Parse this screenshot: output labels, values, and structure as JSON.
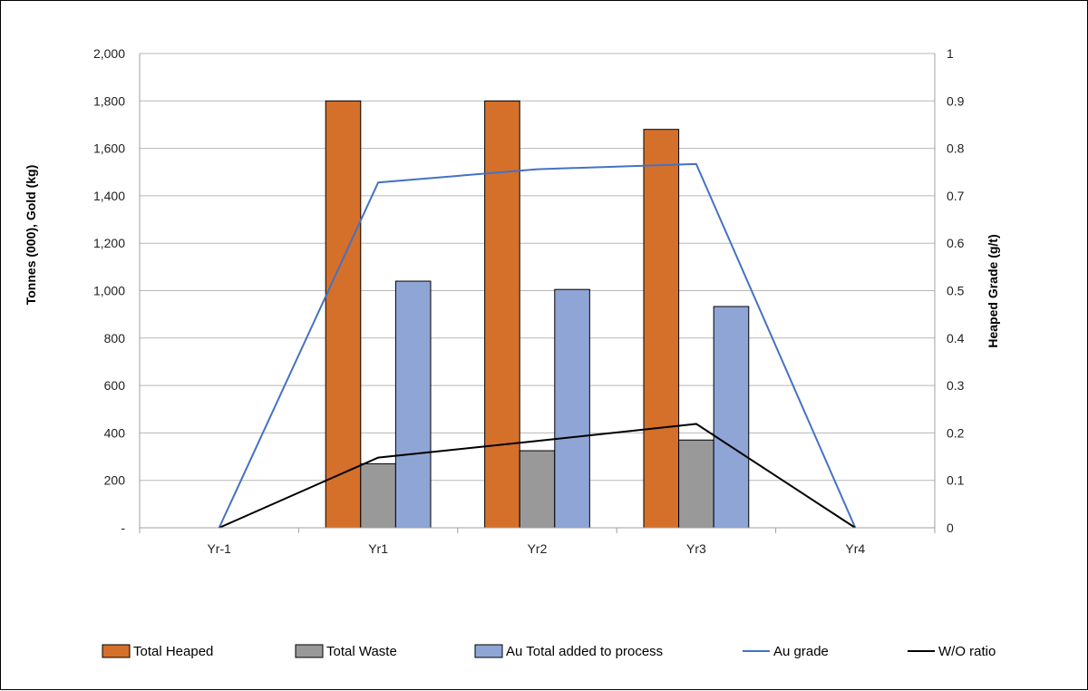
{
  "chart_data": {
    "type": "bar",
    "categories": [
      "Yr-1",
      "Yr1",
      "Yr2",
      "Yr3",
      "Yr4"
    ],
    "series": [
      {
        "name": "Total Heaped",
        "kind": "bar",
        "axis": "left",
        "color": "#D5702A",
        "values": [
          0,
          1800,
          1800,
          1680,
          0
        ]
      },
      {
        "name": "Total Waste",
        "kind": "bar",
        "axis": "left",
        "color": "#999999",
        "values": [
          0,
          270,
          325,
          370,
          0
        ]
      },
      {
        "name": "Au Total added to process",
        "kind": "bar",
        "axis": "left",
        "color": "#8FA5D6",
        "values": [
          0,
          1040,
          1005,
          933,
          0
        ]
      },
      {
        "name": "Au grade",
        "kind": "line",
        "axis": "right",
        "color": "#4472C4",
        "values": [
          0,
          0.728,
          0.756,
          0.767,
          0
        ]
      },
      {
        "name": "W/O ratio",
        "kind": "line",
        "axis": "right",
        "color": "#000000",
        "values": [
          0,
          0.148,
          0.183,
          0.219,
          0
        ]
      }
    ],
    "ylabel": "Tonnes (000), Gold (kg)",
    "y2label": "Heaped Grade (g/t)",
    "ylim": [
      0,
      2000
    ],
    "y2lim": [
      0,
      1
    ],
    "yticks": [
      "-",
      "200",
      "400",
      "600",
      "800",
      "1,000",
      "1,200",
      "1,400",
      "1,600",
      "1,800",
      "2,000"
    ],
    "y2ticks": [
      "0",
      "0.1",
      "0.2",
      "0.3",
      "0.4",
      "0.5",
      "0.6",
      "0.7",
      "0.8",
      "0.9",
      "1"
    ],
    "grid": true,
    "legend_position": "bottom"
  }
}
